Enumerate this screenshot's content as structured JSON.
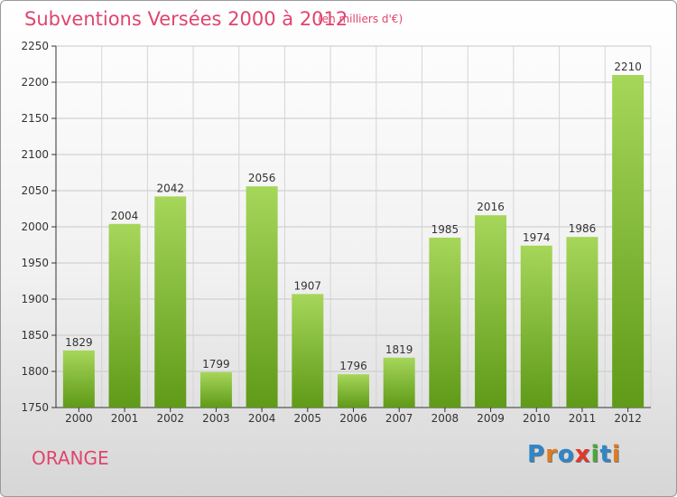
{
  "title": "Subventions Versées 2000 à 2012",
  "subtitle": "(en milliers d'€)",
  "footer": {
    "commune": "ORANGE"
  },
  "logo": {
    "letters": [
      "P",
      "r",
      "o",
      "x",
      "i",
      "t",
      "i"
    ],
    "colors": [
      "#2f86c8",
      "#e07b22",
      "#2f86c8",
      "#e2372c",
      "#4aa83a",
      "#2f86c8",
      "#e07b22"
    ]
  },
  "colors": {
    "bar_top": "#a6d65a",
    "bar_bottom": "#5f9a18",
    "text_accent": "#e0446e"
  },
  "chart_data": {
    "type": "bar",
    "categories": [
      "2000",
      "2001",
      "2002",
      "2003",
      "2004",
      "2005",
      "2006",
      "2007",
      "2008",
      "2009",
      "2010",
      "2011",
      "2012"
    ],
    "values": [
      1829,
      2004,
      2042,
      1799,
      2056,
      1907,
      1796,
      1819,
      1985,
      2016,
      1974,
      1986,
      2210
    ],
    "ylim": [
      1750,
      2250
    ],
    "yticks": [
      1750,
      1800,
      1850,
      1900,
      1950,
      2000,
      2050,
      2100,
      2150,
      2200,
      2250
    ],
    "grid": true,
    "xlabel": "",
    "ylabel": ""
  }
}
